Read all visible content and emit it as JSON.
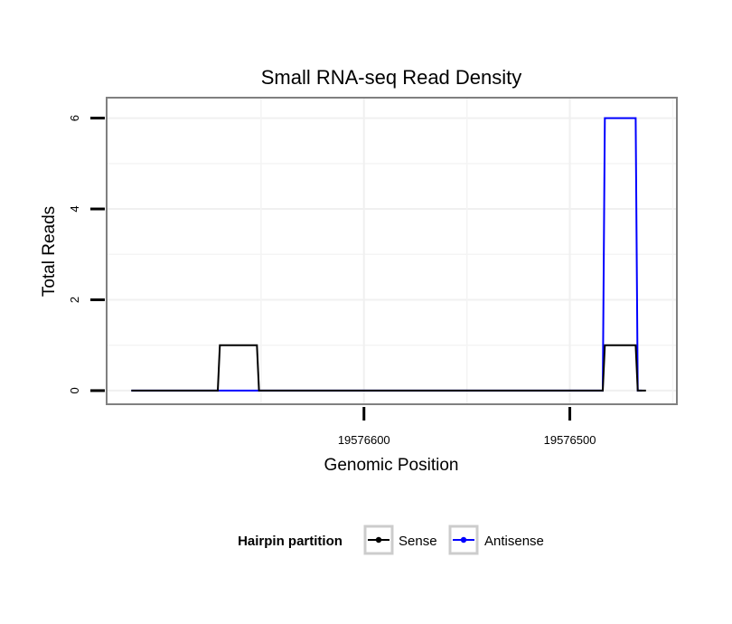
{
  "chart_data": {
    "type": "line",
    "title": "Small RNA-seq Read Density",
    "xlabel": "Genomic Position",
    "ylabel": "Total Reads",
    "x_reversed": true,
    "xlim": [
      19576725,
      19576448
    ],
    "ylim": [
      -0.3,
      6.45
    ],
    "x_ticks": [
      19576600,
      19576500
    ],
    "x_tick_labels": [
      "19576600",
      "19576500"
    ],
    "y_ticks": [
      0,
      2,
      4,
      6
    ],
    "y_tick_labels": [
      "0",
      "2",
      "4",
      "6"
    ],
    "grid": true,
    "legend": {
      "title": "Hairpin partition",
      "position": "bottom",
      "entries": [
        {
          "label": "Sense",
          "color": "#000000"
        },
        {
          "label": "Antisense",
          "color": "#0000ff"
        }
      ]
    },
    "series": [
      {
        "name": "Sense",
        "color": "#000000",
        "x": [
          19576713,
          19576671,
          19576670,
          19576652,
          19576651,
          19576484,
          19576483,
          19576468,
          19576467,
          19576463
        ],
        "y": [
          0,
          0,
          1,
          1,
          0,
          0,
          1,
          1,
          0,
          0
        ]
      },
      {
        "name": "Antisense",
        "color": "#0000ff",
        "x": [
          19576713,
          19576484,
          19576483,
          19576468,
          19576467,
          19576465
        ],
        "y": [
          0,
          0,
          6,
          6,
          0,
          0
        ]
      }
    ]
  }
}
